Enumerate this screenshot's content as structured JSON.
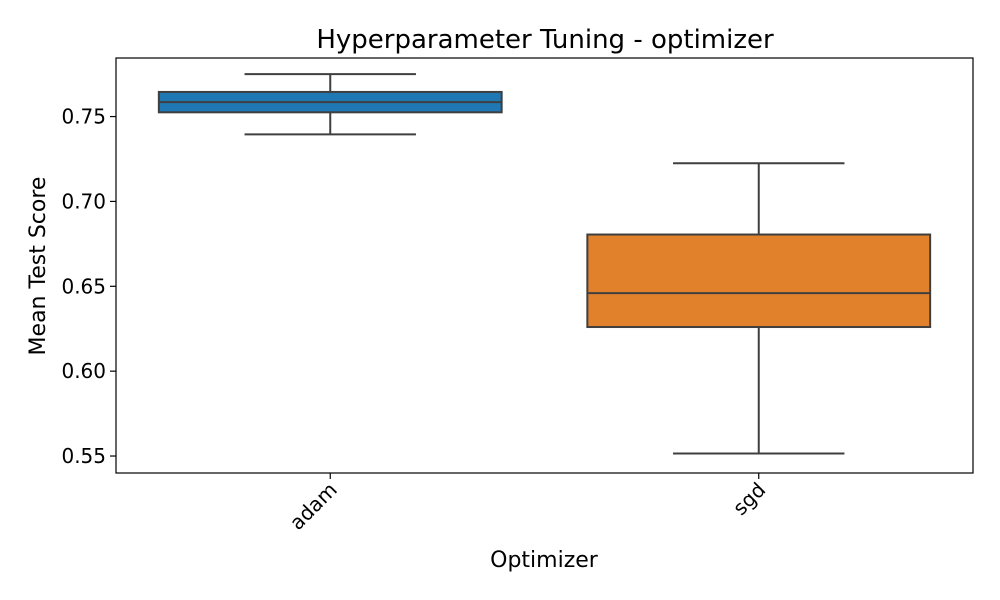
{
  "chart_data": {
    "type": "box",
    "title": "Hyperparameter Tuning - optimizer",
    "xlabel": "Optimizer",
    "ylabel": "Mean Test Score",
    "ylim": [
      0.54,
      0.7845
    ],
    "y_ticks": [
      0.55,
      0.6,
      0.65,
      0.7,
      0.75
    ],
    "y_tick_labels": [
      "0.55",
      "0.60",
      "0.65",
      "0.70",
      "0.75"
    ],
    "grid": false,
    "categories": [
      "adam",
      "sgd"
    ],
    "series": [
      {
        "category": "adam",
        "color": "#1f77b4",
        "min": 0.7395,
        "q1": 0.7525,
        "median": 0.7585,
        "q3": 0.7645,
        "max": 0.775
      },
      {
        "category": "sgd",
        "color": "#e1812c",
        "min": 0.5515,
        "q1": 0.626,
        "median": 0.646,
        "q3": 0.6805,
        "max": 0.7225
      }
    ]
  }
}
